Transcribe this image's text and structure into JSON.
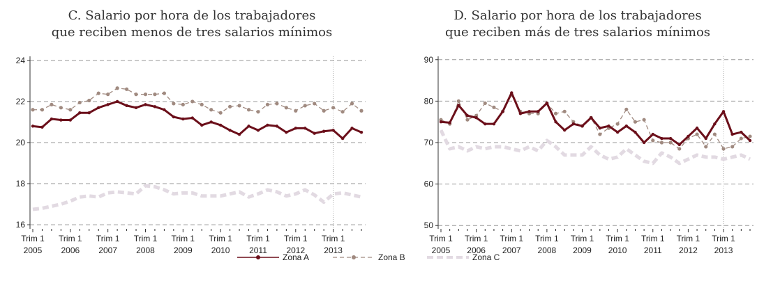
{
  "chart_data": [
    {
      "type": "line",
      "title": [
        "C. Salario por hora de los trabajadores",
        "que reciben menos de tres salarios mínimos"
      ],
      "categories": [
        [
          "Trim 1",
          "2005"
        ],
        null,
        null,
        null,
        [
          "Trim 1",
          "2006"
        ],
        null,
        null,
        null,
        [
          "Trim 1",
          "2007"
        ],
        null,
        null,
        null,
        [
          "Trim 1",
          "2008"
        ],
        null,
        null,
        null,
        [
          "Trim 1",
          "2009"
        ],
        null,
        null,
        null,
        [
          "Trim 1",
          "2010"
        ],
        null,
        null,
        null,
        [
          "Trim 1",
          "2011"
        ],
        null,
        null,
        null,
        [
          "Trim 1",
          "2012"
        ],
        null,
        null,
        null,
        [
          "Trim 1",
          "2013"
        ],
        null,
        null,
        null
      ],
      "ylim": [
        15.8,
        24.2
      ],
      "yticks": [
        16,
        18,
        20,
        22,
        24
      ],
      "grid": true,
      "series": [
        {
          "name": "Zona A",
          "color": "#6b0f1a",
          "values": [
            20.8,
            20.75,
            21.15,
            21.1,
            21.1,
            21.45,
            21.45,
            21.7,
            21.85,
            22.0,
            21.8,
            21.7,
            21.85,
            21.75,
            21.6,
            21.25,
            21.15,
            21.2,
            20.85,
            21.0,
            20.85,
            20.6,
            20.4,
            20.8,
            20.6,
            20.85,
            20.8,
            20.5,
            20.7,
            20.7,
            20.45,
            20.55,
            20.6,
            20.2,
            20.7,
            20.5
          ]
        },
        {
          "name": "Zona B",
          "color": "#a08a80",
          "values": [
            21.6,
            21.6,
            21.85,
            21.7,
            21.6,
            21.95,
            22.05,
            22.4,
            22.35,
            22.65,
            22.6,
            22.35,
            22.35,
            22.35,
            22.4,
            21.9,
            21.85,
            22.0,
            21.85,
            21.6,
            21.45,
            21.75,
            21.8,
            21.6,
            21.5,
            21.85,
            21.9,
            21.7,
            21.55,
            21.8,
            21.9,
            21.55,
            21.7,
            21.5,
            21.9,
            21.55
          ]
        },
        {
          "name": "Zona C",
          "color": "#e2dae2",
          "values": [
            16.75,
            16.8,
            16.9,
            17.0,
            17.15,
            17.35,
            17.4,
            17.35,
            17.55,
            17.6,
            17.55,
            17.5,
            17.9,
            17.85,
            17.7,
            17.5,
            17.55,
            17.55,
            17.4,
            17.4,
            17.4,
            17.5,
            17.6,
            17.35,
            17.5,
            17.7,
            17.6,
            17.4,
            17.5,
            17.7,
            17.45,
            17.1,
            17.5,
            17.55,
            17.45,
            17.35
          ]
        }
      ]
    },
    {
      "type": "line",
      "title": [
        "D. Salario por hora de los trabajadores",
        "que reciben más de tres salarios mínimos"
      ],
      "categories": [
        [
          "Trim 1",
          "2005"
        ],
        null,
        null,
        null,
        [
          "Trim 1",
          "2006"
        ],
        null,
        null,
        null,
        [
          "Trim 1",
          "2007"
        ],
        null,
        null,
        null,
        [
          "Trim 1",
          "2008"
        ],
        null,
        null,
        null,
        [
          "Trim 1",
          "2009"
        ],
        null,
        null,
        null,
        [
          "Trim 1",
          "2010"
        ],
        null,
        null,
        null,
        [
          "Trim 1",
          "2011"
        ],
        null,
        null,
        null,
        [
          "Trim 1",
          "2012"
        ],
        null,
        null,
        null,
        [
          "Trim 1",
          "2013"
        ],
        null,
        null,
        null
      ],
      "ylim": [
        49.2,
        90.8
      ],
      "yticks": [
        50,
        60,
        70,
        80,
        90
      ],
      "grid": true,
      "series": [
        {
          "name": "Zona A",
          "color": "#6b0f1a",
          "values": [
            75,
            74.8,
            79,
            76.5,
            76,
            74.5,
            74.5,
            77.5,
            82,
            77,
            77.5,
            77.5,
            79.5,
            75,
            73,
            74.5,
            74,
            76,
            73.5,
            74,
            72.5,
            74,
            72.5,
            70,
            72,
            71,
            71,
            69.5,
            71.5,
            73.5,
            71,
            74.5,
            77.5,
            72,
            72.5,
            70.5
          ]
        },
        {
          "name": "Zona B",
          "color": "#a08a80",
          "values": [
            75.5,
            74.5,
            80,
            75.5,
            76.5,
            79.5,
            78.5,
            77.5,
            81.5,
            77.5,
            77,
            77,
            79.5,
            77,
            77.5,
            75,
            74,
            76,
            72,
            73.5,
            74.5,
            78,
            75,
            75.5,
            70.5,
            70,
            70,
            68.5,
            71,
            72,
            69,
            72,
            68.5,
            69,
            71,
            71.5
          ]
        },
        {
          "name": "Zona C",
          "color": "#e2dae2",
          "values": [
            73,
            68.5,
            69,
            68,
            69,
            68.5,
            69,
            69,
            68.5,
            68,
            69,
            68,
            70.5,
            69,
            67,
            67,
            67,
            69,
            67,
            66,
            66.5,
            68.5,
            67,
            65.5,
            65,
            67.5,
            66.5,
            65,
            66,
            67,
            66.5,
            66.5,
            66,
            66.5,
            67,
            66
          ]
        }
      ]
    }
  ]
}
